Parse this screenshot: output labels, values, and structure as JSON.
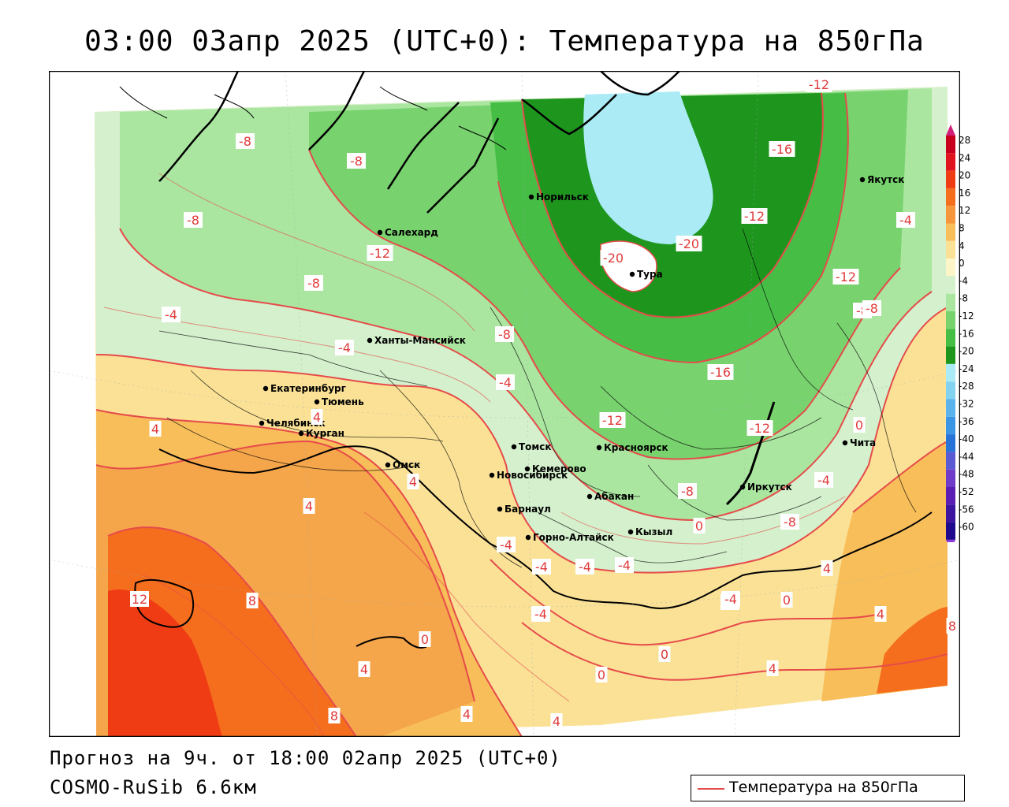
{
  "header": {
    "title": "03:00 03апр 2025 (UTC+0): Температура на 850гПа"
  },
  "footer": {
    "forecast": "Прогноз на 9ч. от 18:00 02апр 2025 (UTC+0)",
    "model": "COSMO-RuSib 6.6км"
  },
  "legend": {
    "label": "Температура на 850гПа",
    "line_color": "#e64b4b"
  },
  "colors": {
    "isoline": "#e64b4b",
    "border": "#000000",
    "water": "#ffffff"
  },
  "color_scale": {
    "labels": [
      "28",
      "24",
      "20",
      "16",
      "12",
      "8",
      "4",
      "0",
      "-4",
      "-8",
      "-12",
      "-16",
      "-20",
      "-24",
      "-28",
      "-32",
      "-36",
      "-40",
      "-44",
      "-48",
      "-52",
      "-56",
      "-60"
    ],
    "colors": [
      "#c8001e",
      "#e0141e",
      "#f03c14",
      "#f56e1e",
      "#f5963c",
      "#f8be5a",
      "#fae196",
      "#fcf5c8",
      "#d4f0cc",
      "#aae6a0",
      "#78d26e",
      "#46be46",
      "#1e961e",
      "#aaebf5",
      "#82d2f0",
      "#5ab4eb",
      "#3c96e6",
      "#2873d7",
      "#5a5ad2",
      "#6e3cc8",
      "#5a1eb4",
      "#3c14a0",
      "#1e0a8c"
    ]
  },
  "cities": [
    {
      "name": "Норильск"
    },
    {
      "name": "Якутск"
    },
    {
      "name": "Салехард"
    },
    {
      "name": "Тура"
    },
    {
      "name": "Ханты-Мансийск"
    },
    {
      "name": "Екатеринбург"
    },
    {
      "name": "Тюмень"
    },
    {
      "name": "Челябинск"
    },
    {
      "name": "Курган"
    },
    {
      "name": "Омск"
    },
    {
      "name": "Новосибирск"
    },
    {
      "name": "Томск"
    },
    {
      "name": "Кемерово"
    },
    {
      "name": "Красноярск"
    },
    {
      "name": "Абакан"
    },
    {
      "name": "Барнаул"
    },
    {
      "name": "Горно-Алтайск"
    },
    {
      "name": "Кызыл"
    },
    {
      "name": "Иркутск"
    },
    {
      "name": "Чита"
    }
  ],
  "isotherm_labels": [
    "-8",
    "-8",
    "-12",
    "-8",
    "-12",
    "-16",
    "-20",
    "-20",
    "-4",
    "-12",
    "-8",
    "-12",
    "-8",
    "-4",
    "-4",
    "-8",
    "-4",
    "-16",
    "0",
    "4",
    "-12",
    "-12",
    "4",
    "-8",
    "-8",
    "-4",
    "-4",
    "-4",
    "-4",
    "-4",
    "-8",
    "-4",
    "-4",
    "4",
    "4",
    "12",
    "8",
    "0",
    "4",
    "-4",
    "0",
    "0",
    "4",
    "8",
    "4",
    "8",
    "4",
    "4",
    "0",
    "4",
    "0"
  ]
}
